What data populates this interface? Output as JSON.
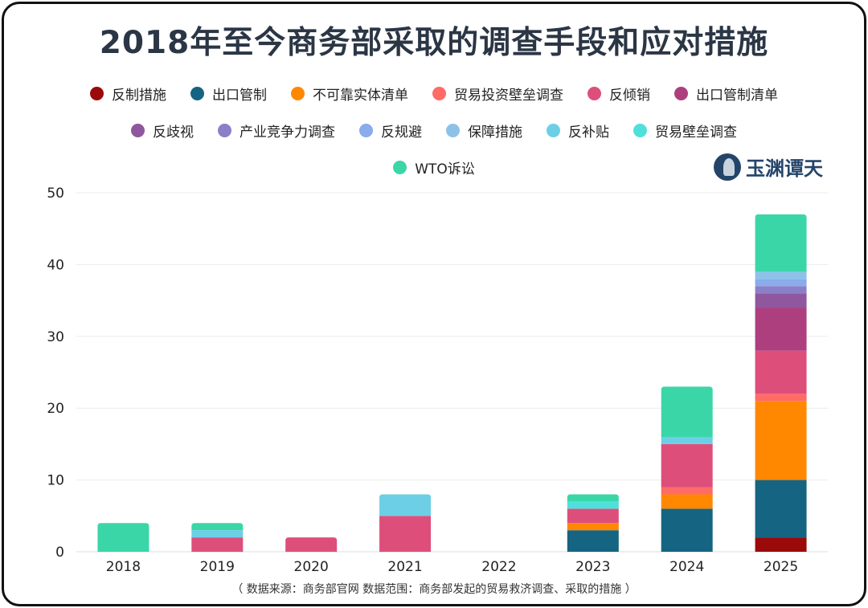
{
  "title": "2018年至今商务部采取的调查手段和应对措施",
  "logo_text": "玉渊谭天",
  "source_note": "（ 数据来源：商务部官网  数据范围：商务部发起的贸易救济调查、采取的措施 ）",
  "chart_data": {
    "type": "bar",
    "stacked": true,
    "title": "2018年至今商务部采取的调查手段和应对措施",
    "xlabel": "",
    "ylabel": "",
    "ylim": [
      0,
      50
    ],
    "yticks": [
      0,
      10,
      20,
      30,
      40,
      50
    ],
    "grid": true,
    "legend_position": "top",
    "categories": [
      "2018",
      "2019",
      "2020",
      "2021",
      "2022",
      "2023",
      "2024",
      "2025"
    ],
    "series": [
      {
        "name": "反制措施",
        "color": "#9b0a0a",
        "values": [
          0,
          0,
          0,
          0,
          0,
          0,
          0,
          2
        ]
      },
      {
        "name": "出口管制",
        "color": "#156482",
        "values": [
          0,
          0,
          0,
          0,
          0,
          3,
          6,
          8
        ]
      },
      {
        "name": "不可靠实体清单",
        "color": "#ff8800",
        "values": [
          0,
          0,
          0,
          0,
          0,
          1,
          2,
          11
        ]
      },
      {
        "name": "贸易投资壁垒调查",
        "color": "#ff6b66",
        "values": [
          0,
          0,
          0,
          0,
          0,
          0,
          1,
          1
        ]
      },
      {
        "name": "反倾销",
        "color": "#dd4f7a",
        "values": [
          0,
          2,
          2,
          5,
          0,
          2,
          6,
          6
        ]
      },
      {
        "name": "出口管制清单",
        "color": "#ad3f7f",
        "values": [
          0,
          0,
          0,
          0,
          0,
          0,
          0,
          6
        ]
      },
      {
        "name": "反歧视",
        "color": "#8f579d",
        "values": [
          0,
          0,
          0,
          0,
          0,
          0,
          0,
          2
        ]
      },
      {
        "name": "产业竞争力调查",
        "color": "#8a80c8",
        "values": [
          0,
          0,
          0,
          0,
          0,
          0,
          0,
          1
        ]
      },
      {
        "name": "反规避",
        "color": "#8aabec",
        "values": [
          0,
          0,
          0,
          0,
          0,
          0,
          0,
          1
        ]
      },
      {
        "name": "保障措施",
        "color": "#8ec1e8",
        "values": [
          0,
          0,
          0,
          0,
          0,
          0,
          0,
          1
        ]
      },
      {
        "name": "反补贴",
        "color": "#6ccfe5",
        "values": [
          0,
          1,
          0,
          3,
          0,
          0,
          1,
          0
        ]
      },
      {
        "name": "贸易壁垒调查",
        "color": "#4fe0dc",
        "values": [
          0,
          0,
          0,
          0,
          0,
          1,
          0,
          0
        ]
      },
      {
        "name": "WTO诉讼",
        "color": "#3bd6a7",
        "values": [
          4,
          1,
          0,
          0,
          0,
          1,
          7,
          8
        ]
      }
    ]
  }
}
